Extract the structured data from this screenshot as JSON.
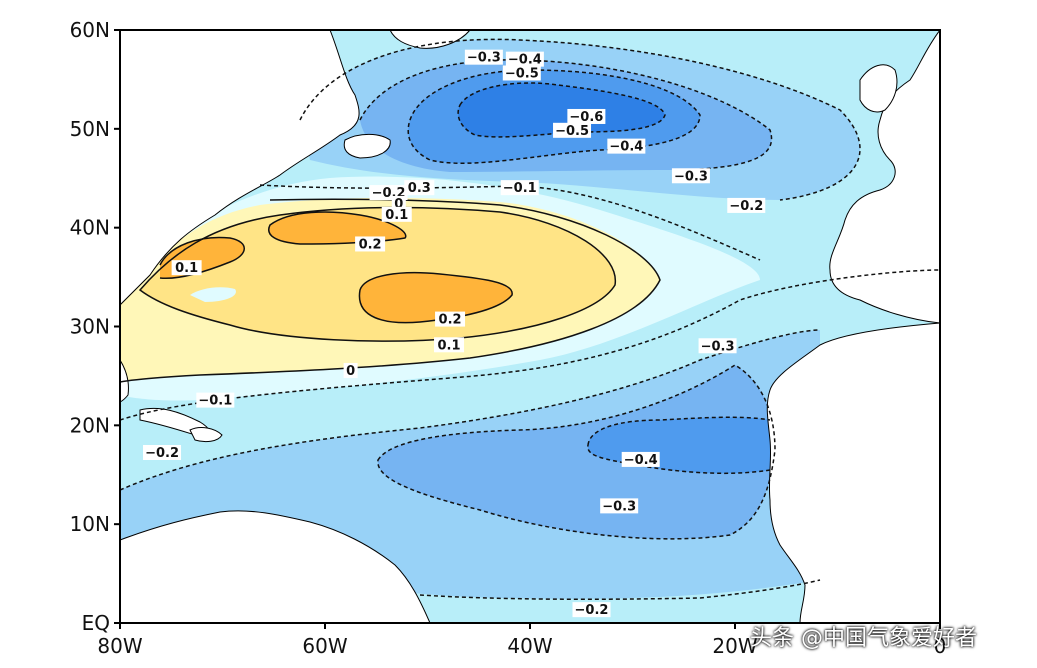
{
  "map": {
    "lat_ticks": [
      "60N",
      "50N",
      "40N",
      "30N",
      "20N",
      "10N",
      "EQ"
    ],
    "lon_ticks": [
      "80W",
      "60W",
      "40W",
      "20W",
      "0"
    ],
    "contour_labels": [
      {
        "text": "-0.3",
        "lon": -44.5,
        "lat": 57.2
      },
      {
        "text": "-0.4",
        "lon": -40.5,
        "lat": 57.0
      },
      {
        "text": "-0.5",
        "lon": -40.8,
        "lat": 55.6
      },
      {
        "text": "-0.6",
        "lon": -34.5,
        "lat": 51.2
      },
      {
        "text": "-0.5",
        "lon": -35.9,
        "lat": 49.8
      },
      {
        "text": "-0.4",
        "lon": -30.6,
        "lat": 48.2
      },
      {
        "text": "-0.3",
        "lon": -24.3,
        "lat": 45.2
      },
      {
        "text": "-0.2",
        "lon": -18.9,
        "lat": 42.2
      },
      {
        "text": "-0.1",
        "lon": -41.0,
        "lat": 44.0
      },
      {
        "text": "-0.2",
        "lon": -53.8,
        "lat": 43.5
      },
      {
        "text": "0.3",
        "lon": -50.8,
        "lat": 44.0
      },
      {
        "text": "0",
        "lon": -52.8,
        "lat": 42.4
      },
      {
        "text": "0.1",
        "lon": -53.0,
        "lat": 41.3
      },
      {
        "text": "0.2",
        "lon": -55.6,
        "lat": 38.3
      },
      {
        "text": "0.1",
        "lon": -73.5,
        "lat": 35.9
      },
      {
        "text": "0.2",
        "lon": -47.8,
        "lat": 30.7
      },
      {
        "text": "0.1",
        "lon": -47.9,
        "lat": 28.1
      },
      {
        "text": "0",
        "lon": -57.5,
        "lat": 25.5
      },
      {
        "text": "-0.1",
        "lon": -70.7,
        "lat": 22.5
      },
      {
        "text": "-0.2",
        "lon": -75.9,
        "lat": 17.2
      },
      {
        "text": "-0.3",
        "lon": -21.7,
        "lat": 28.0
      },
      {
        "text": "-0.4",
        "lon": -29.2,
        "lat": 16.5
      },
      {
        "text": "-0.3",
        "lon": -31.3,
        "lat": 11.8
      },
      {
        "text": "-0.2",
        "lon": -34.0,
        "lat": 1.3
      }
    ],
    "colors": {
      "very_light_cyan": "#e0fbff",
      "light_cyan": "#b8eef9",
      "light_blue": "#98d2f7",
      "mid_blue": "#76b4f2",
      "blue": "#4f9bee",
      "deep_blue": "#2e80e6",
      "pale_yellow": "#fff7b8",
      "yellow": "#ffe486",
      "orange": "#ffb43a",
      "land": "#ffffff"
    }
  },
  "watermark": "头条 @中国气象爱好者"
}
